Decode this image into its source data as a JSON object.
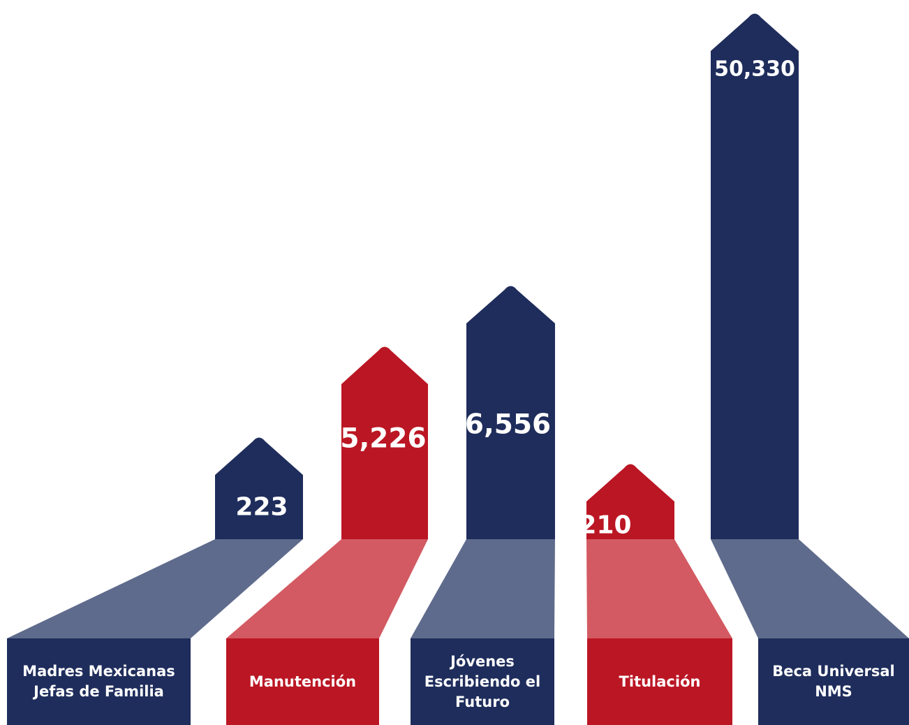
{
  "chart_data": {
    "type": "bar",
    "title": "",
    "xlabel": "",
    "ylabel": "",
    "categories": [
      "Madres Mexicanas Jefas de Familia",
      "Manutención",
      "Jóvenes Escribiendo el Futuro",
      "Titulación",
      "Beca Universal NMS"
    ],
    "values": [
      223,
      5226,
      6556,
      210,
      50330
    ],
    "value_labels": [
      "223",
      "5,226",
      "6,556",
      "210",
      "50,330"
    ],
    "colors": {
      "navy": "#1f2d5c",
      "navy_shade": "#5f6b8c",
      "red": "#bb1624",
      "red_shade": "#d35a62"
    },
    "bar_colors": [
      "navy",
      "red",
      "navy",
      "red",
      "navy"
    ],
    "icon": "arrow-bar"
  }
}
